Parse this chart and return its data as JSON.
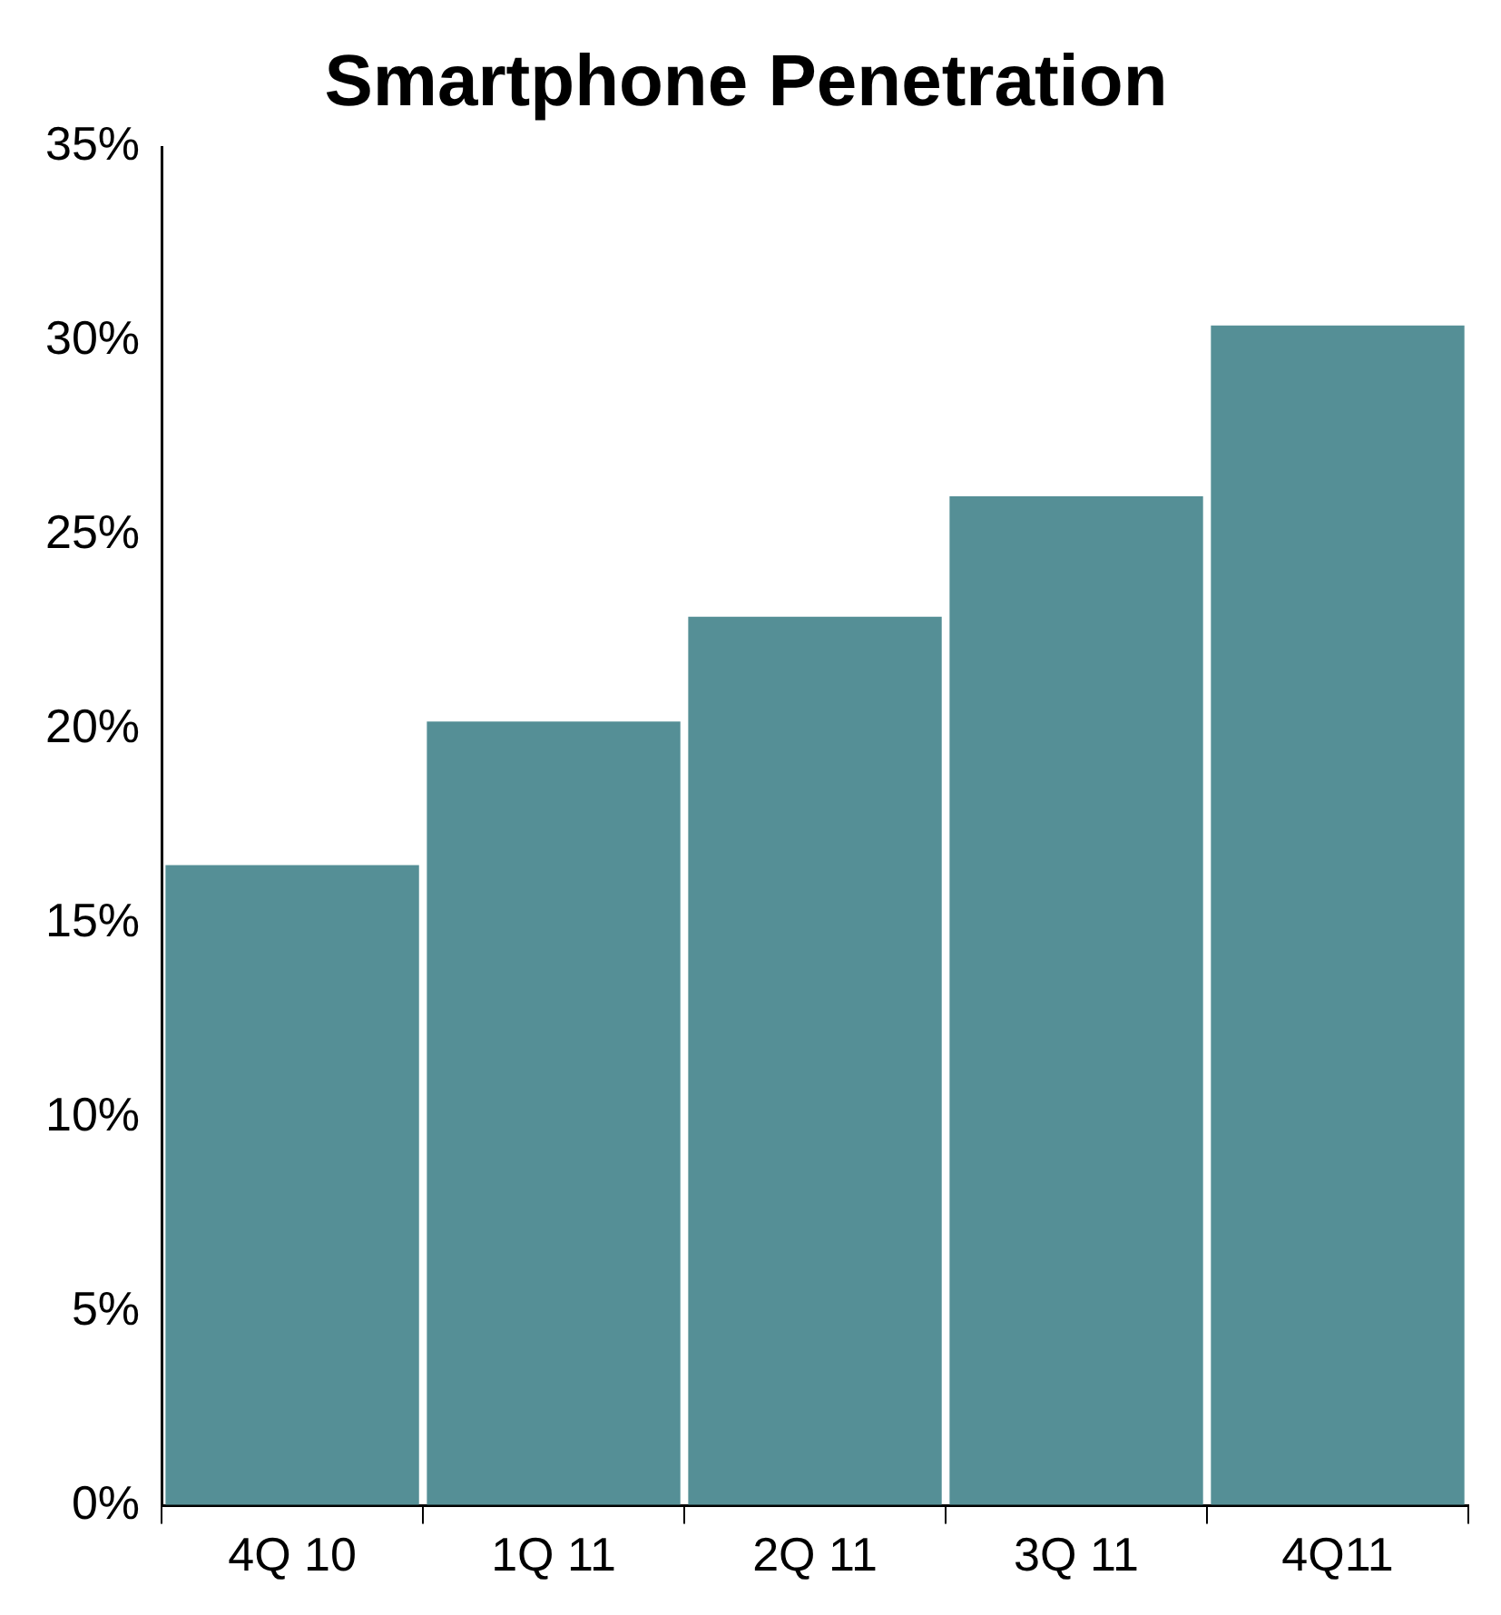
{
  "chart_data": {
    "type": "bar",
    "title": "Smartphone Penetration",
    "categories": [
      "4Q 10",
      "1Q 11",
      "2Q 11",
      "3Q 11",
      "4Q11"
    ],
    "values": [
      16.5,
      20.2,
      22.9,
      26,
      30.4
    ],
    "color": "#558f96",
    "ylim": [
      0,
      35
    ],
    "yticks": [
      {
        "value": 0,
        "label": "0%"
      },
      {
        "value": 5,
        "label": "5%"
      },
      {
        "value": 10,
        "label": "10%"
      },
      {
        "value": 15,
        "label": "15%"
      },
      {
        "value": 20,
        "label": "20%"
      },
      {
        "value": 25,
        "label": "25%"
      },
      {
        "value": 30,
        "label": "30%"
      },
      {
        "value": 35,
        "label": "35%"
      }
    ],
    "grid": false,
    "legend": false
  }
}
